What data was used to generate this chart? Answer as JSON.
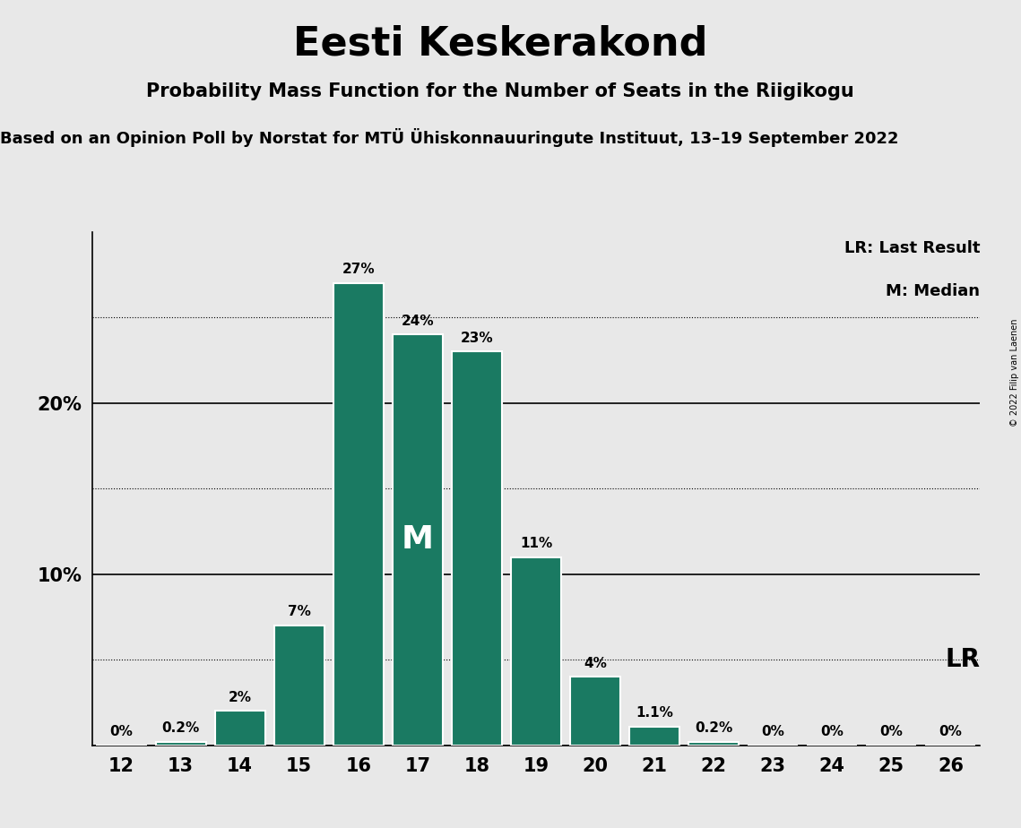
{
  "title": "Eesti Keskerakond",
  "subtitle": "Probability Mass Function for the Number of Seats in the Riigikogu",
  "sub_subtitle": "Based on an Opinion Poll by Norstat for MTÜ Ühiskonnauuringute Instituut, 13–19 September 2022",
  "copyright": "© 2022 Filip van Laenen",
  "seats": [
    12,
    13,
    14,
    15,
    16,
    17,
    18,
    19,
    20,
    21,
    22,
    23,
    24,
    25,
    26
  ],
  "probabilities": [
    0.0,
    0.2,
    2.0,
    7.0,
    27.0,
    24.0,
    23.0,
    11.0,
    4.0,
    1.1,
    0.2,
    0.0,
    0.0,
    0.0,
    0.0
  ],
  "labels": [
    "0%",
    "0.2%",
    "2%",
    "7%",
    "27%",
    "24%",
    "23%",
    "11%",
    "4%",
    "1.1%",
    "0.2%",
    "0%",
    "0%",
    "0%",
    "0%"
  ],
  "bar_color": "#1a7a62",
  "background_color": "#e8e8e8",
  "median_seat": 17,
  "median_label": "M",
  "lr_seat": 22,
  "lr_label": "LR",
  "ylim": [
    0,
    30
  ],
  "dotted_lines": [
    5,
    15,
    25
  ],
  "solid_lines": [
    10,
    20
  ],
  "legend_lr": "LR: Last Result",
  "legend_m": "M: Median"
}
